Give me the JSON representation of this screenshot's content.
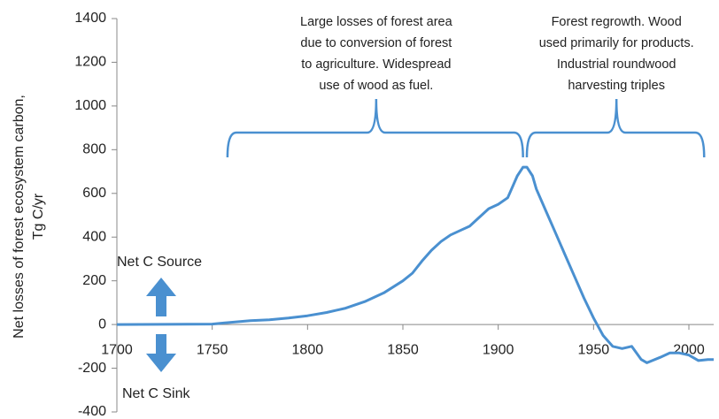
{
  "chart_data": {
    "type": "line",
    "y_label": [
      "Net losses of forest ecosystem carbon,",
      "Tg C/yr"
    ],
    "x": [
      1700,
      1750,
      1760,
      1770,
      1780,
      1790,
      1800,
      1810,
      1820,
      1830,
      1840,
      1850,
      1855,
      1860,
      1865,
      1870,
      1875,
      1880,
      1885,
      1890,
      1895,
      1900,
      1905,
      1910,
      1913,
      1915,
      1918,
      1920,
      1925,
      1930,
      1935,
      1940,
      1945,
      1950,
      1955,
      1960,
      1965,
      1970,
      1975,
      1978,
      1985,
      1990,
      1995,
      2000,
      2005,
      2010,
      2013
    ],
    "values": [
      0,
      2,
      10,
      18,
      22,
      30,
      40,
      55,
      75,
      105,
      145,
      200,
      235,
      290,
      340,
      380,
      410,
      430,
      450,
      490,
      530,
      550,
      580,
      680,
      720,
      720,
      680,
      620,
      520,
      420,
      320,
      220,
      120,
      30,
      -50,
      -100,
      -110,
      -100,
      -160,
      -175,
      -150,
      -130,
      -130,
      -140,
      -165,
      -160,
      -160
    ],
    "color": "#4a90d0",
    "xlim": [
      1700,
      2013
    ],
    "xticks": [
      1700,
      1750,
      1800,
      1850,
      1900,
      1950,
      2000
    ],
    "ylim": [
      -400,
      1400
    ],
    "yticks": [
      -400,
      -200,
      0,
      200,
      400,
      600,
      800,
      1000,
      1200,
      1400
    ],
    "annotations": [
      {
        "span": [
          1758,
          1913
        ],
        "tip": 1836,
        "lines": [
          "Large losses of forest area",
          "due to conversion of forest",
          "to agriculture. Widespread",
          "use of wood as fuel."
        ]
      },
      {
        "span": [
          1915,
          2008
        ],
        "tip": 1962,
        "lines": [
          "Forest regrowth. Wood",
          "used primarily for products.",
          "Industrial roundwood",
          "harvesting triples"
        ]
      }
    ],
    "source_label": "Net C Source",
    "sink_label": "Net C Sink"
  }
}
